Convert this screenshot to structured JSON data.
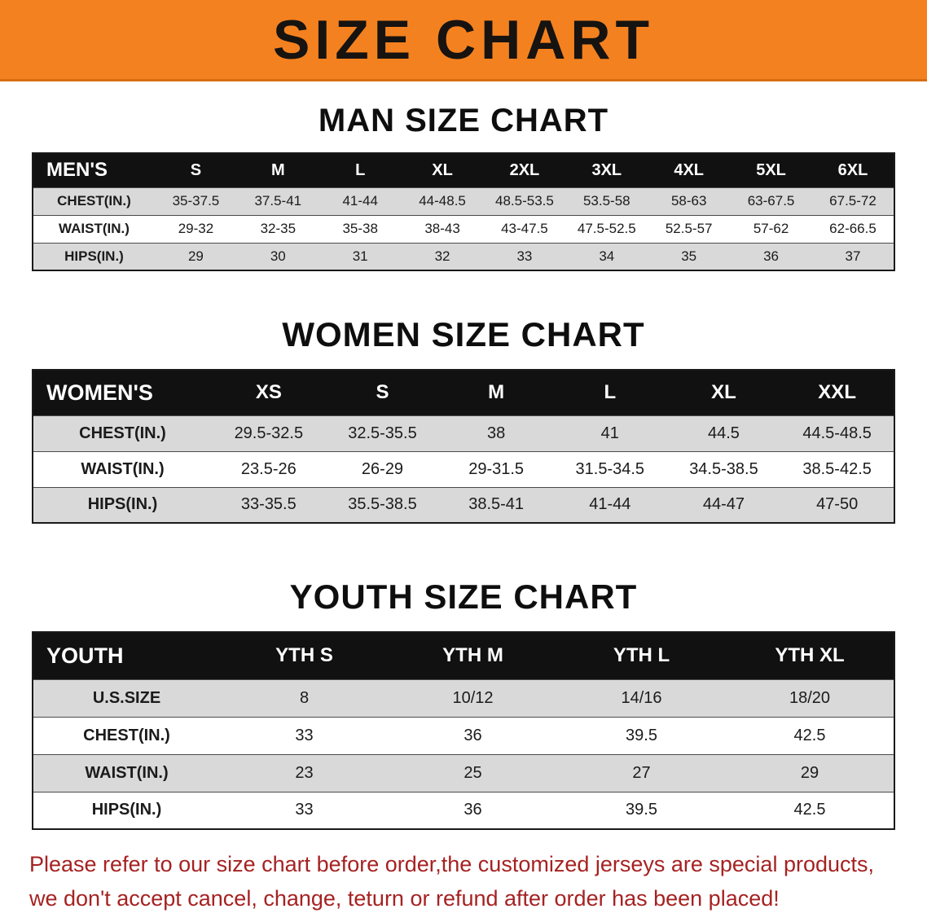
{
  "banner": {
    "title": "SIZE CHART",
    "bg_color": "#f4811f",
    "text_color": "#161310"
  },
  "sections": [
    {
      "heading": "MAN SIZE CHART",
      "header_label": "MEN'S",
      "columns": [
        "S",
        "M",
        "L",
        "XL",
        "2XL",
        "3XL",
        "4XL",
        "5XL",
        "6XL"
      ],
      "rows": [
        {
          "label": "CHEST(IN.)",
          "values": [
            "35-37.5",
            "37.5-41",
            "41-44",
            "44-48.5",
            "48.5-53.5",
            "53.5-58",
            "58-63",
            "63-67.5",
            "67.5-72"
          ]
        },
        {
          "label": "WAIST(IN.)",
          "values": [
            "29-32",
            "32-35",
            "35-38",
            "38-43",
            "43-47.5",
            "47.5-52.5",
            "52.5-57",
            "57-62",
            "62-66.5"
          ]
        },
        {
          "label": "HIPS(IN.)",
          "values": [
            "29",
            "30",
            "31",
            "32",
            "33",
            "34",
            "35",
            "36",
            "37"
          ]
        }
      ]
    },
    {
      "heading": "WOMEN SIZE CHART",
      "header_label": "WOMEN'S",
      "columns": [
        "XS",
        "S",
        "M",
        "L",
        "XL",
        "XXL"
      ],
      "rows": [
        {
          "label": "CHEST(IN.)",
          "values": [
            "29.5-32.5",
            "32.5-35.5",
            "38",
            "41",
            "44.5",
            "44.5-48.5"
          ]
        },
        {
          "label": "WAIST(IN.)",
          "values": [
            "23.5-26",
            "26-29",
            "29-31.5",
            "31.5-34.5",
            "34.5-38.5",
            "38.5-42.5"
          ]
        },
        {
          "label": "HIPS(IN.)",
          "values": [
            "33-35.5",
            "35.5-38.5",
            "38.5-41",
            "41-44",
            "44-47",
            "47-50"
          ]
        }
      ]
    },
    {
      "heading": "YOUTH SIZE CHART",
      "header_label": "YOUTH",
      "columns": [
        "YTH S",
        "YTH M",
        "YTH L",
        "YTH XL"
      ],
      "rows": [
        {
          "label": "U.S.SIZE",
          "values": [
            "8",
            "10/12",
            "14/16",
            "18/20"
          ]
        },
        {
          "label": "CHEST(IN.)",
          "values": [
            "33",
            "36",
            "39.5",
            "42.5"
          ]
        },
        {
          "label": "WAIST(IN.)",
          "values": [
            "23",
            "25",
            "27",
            "29"
          ]
        },
        {
          "label": "HIPS(IN.)",
          "values": [
            "33",
            "36",
            "39.5",
            "42.5"
          ]
        }
      ]
    }
  ],
  "footer": {
    "line1": "Please refer to our size chart before order,the customized jerseys are special products,",
    "line2": "we don't accept cancel, change, teturn or refund after order has been placed!",
    "text_color": "#a62222"
  }
}
